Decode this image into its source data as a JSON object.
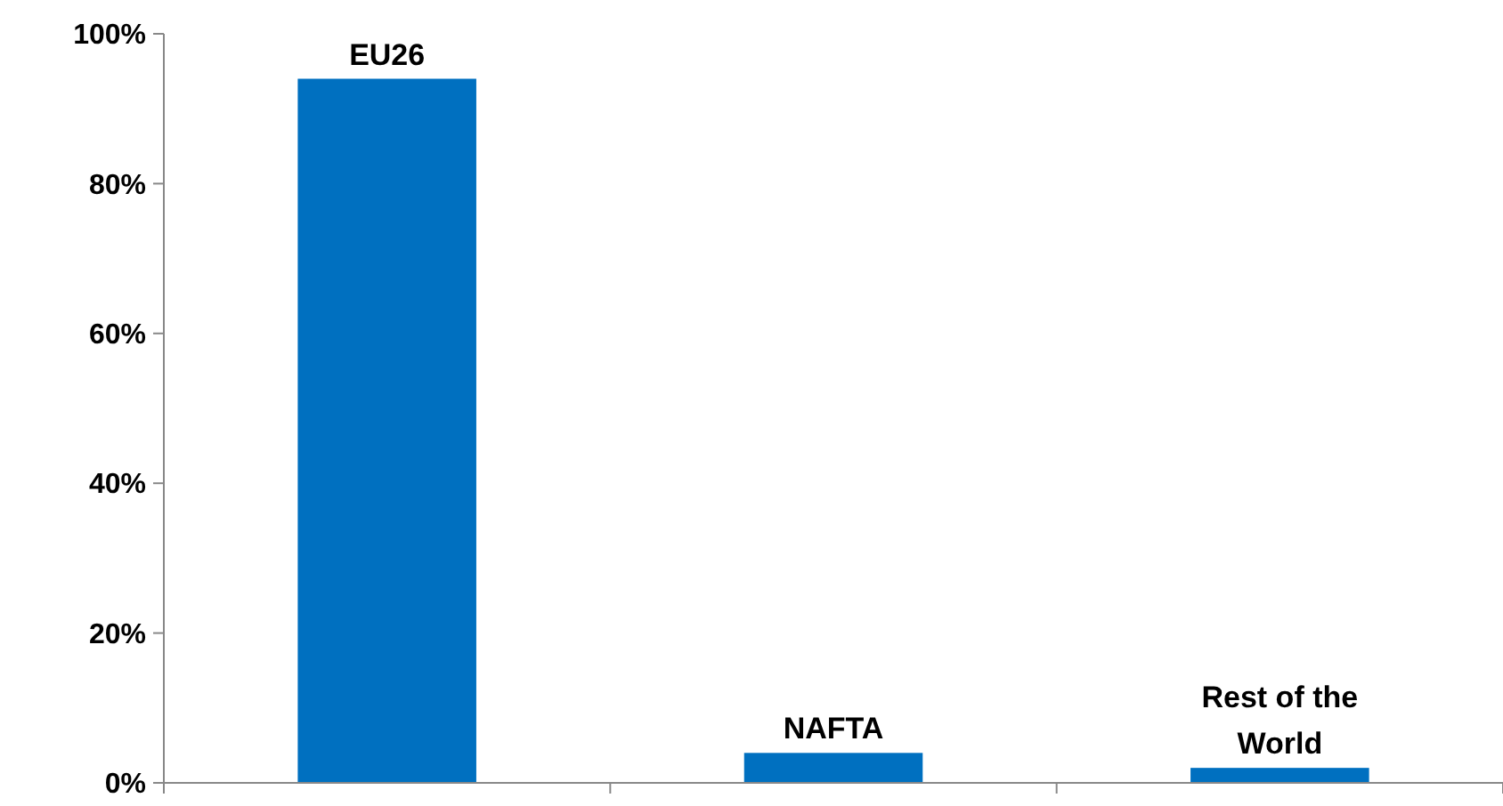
{
  "chart_data": {
    "type": "bar",
    "categories": [
      "EU26",
      "NAFTA",
      "Rest of the World"
    ],
    "values": [
      94,
      4,
      2
    ],
    "color": "#0070c0",
    "ylim": [
      0,
      100
    ],
    "yticks": [
      {
        "value": 0,
        "label": "0%"
      },
      {
        "value": 20,
        "label": "20%"
      },
      {
        "value": 40,
        "label": "40%"
      },
      {
        "value": 60,
        "label": "60%"
      },
      {
        "value": 80,
        "label": "80%"
      },
      {
        "value": 100,
        "label": "100%"
      }
    ],
    "grid": false
  }
}
